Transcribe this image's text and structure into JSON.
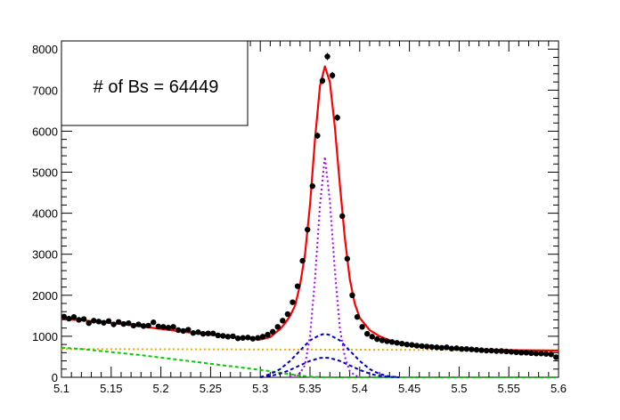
{
  "chart_data": {
    "type": "scatter",
    "title": "",
    "xlabel": "",
    "ylabel": "",
    "xlim": [
      5.1,
      5.6
    ],
    "ylim": [
      0,
      8200
    ],
    "grid": false,
    "legend_placement": "top-left",
    "annotation": "# of Bs = 64449",
    "x_ticks": [
      "5.1",
      "5.15",
      "5.2",
      "5.25",
      "5.3",
      "5.35",
      "5.4",
      "5.45",
      "5.5",
      "5.55",
      "5.6"
    ],
    "x_tick_values": [
      5.1,
      5.15,
      5.2,
      5.25,
      5.3,
      5.35,
      5.4,
      5.45,
      5.5,
      5.55,
      5.6
    ],
    "y_ticks": [
      "0",
      "1000",
      "2000",
      "3000",
      "4000",
      "5000",
      "6000",
      "7000",
      "8000"
    ],
    "y_tick_values": [
      0,
      1000,
      2000,
      3000,
      4000,
      5000,
      6000,
      7000,
      8000
    ],
    "colors": {
      "data": "#000000",
      "total_fit": "#ff0000",
      "signal_narrow": "#aa00ff",
      "signal_wide": "#0000cc",
      "partial_reco": "#00cc00",
      "combinatorial": "#ffaa00"
    },
    "series": [
      {
        "key": "data",
        "style": "points",
        "x": [
          5.1025,
          5.1075,
          5.1125,
          5.1175,
          5.1225,
          5.1275,
          5.1325,
          5.1375,
          5.1425,
          5.1475,
          5.1525,
          5.1575,
          5.1625,
          5.1675,
          5.1725,
          5.1775,
          5.1825,
          5.1875,
          5.1925,
          5.1975,
          5.2025,
          5.2075,
          5.2125,
          5.2175,
          5.2225,
          5.2275,
          5.2325,
          5.2375,
          5.2425,
          5.2475,
          5.2525,
          5.2575,
          5.2625,
          5.2675,
          5.2725,
          5.2775,
          5.2825,
          5.2875,
          5.2925,
          5.2975,
          5.3025,
          5.3075,
          5.3125,
          5.3175,
          5.3225,
          5.3275,
          5.3325,
          5.3375,
          5.3425,
          5.3475,
          5.3525,
          5.3575,
          5.3625,
          5.3675,
          5.3725,
          5.3775,
          5.3825,
          5.3875,
          5.3925,
          5.3975,
          5.4025,
          5.4075,
          5.4125,
          5.4175,
          5.4225,
          5.4275,
          5.4325,
          5.4375,
          5.4425,
          5.4475,
          5.4525,
          5.4575,
          5.4625,
          5.4675,
          5.4725,
          5.4775,
          5.4825,
          5.4875,
          5.4925,
          5.4975,
          5.5025,
          5.5075,
          5.5125,
          5.5175,
          5.5225,
          5.5275,
          5.5325,
          5.5375,
          5.5425,
          5.5475,
          5.5525,
          5.5575,
          5.5625,
          5.5675,
          5.5725,
          5.5775,
          5.5825,
          5.5875,
          5.5925,
          5.5975
        ],
        "y": [
          1480,
          1430,
          1470,
          1400,
          1420,
          1320,
          1380,
          1360,
          1330,
          1370,
          1290,
          1350,
          1300,
          1320,
          1260,
          1290,
          1250,
          1260,
          1340,
          1240,
          1230,
          1210,
          1230,
          1150,
          1130,
          1160,
          1080,
          1100,
          1060,
          1070,
          1070,
          1020,
          1010,
          990,
          1000,
          950,
          960,
          970,
          940,
          960,
          990,
          1040,
          1110,
          1230,
          1380,
          1540,
          1830,
          2220,
          2840,
          3600,
          4660,
          5890,
          7230,
          7820,
          7360,
          6330,
          3930,
          2890,
          2000,
          1470,
          1230,
          1060,
          990,
          930,
          900,
          880,
          860,
          840,
          820,
          800,
          790,
          770,
          760,
          750,
          740,
          730,
          720,
          730,
          700,
          710,
          690,
          690,
          680,
          670,
          660,
          650,
          650,
          640,
          640,
          630,
          620,
          610,
          600,
          600,
          590,
          580,
          580,
          570,
          560,
          490
        ],
        "errors": [
          38,
          38,
          38,
          37,
          38,
          36,
          37,
          37,
          36,
          37,
          36,
          37,
          36,
          36,
          35,
          36,
          35,
          35,
          37,
          35,
          35,
          35,
          35,
          34,
          34,
          34,
          33,
          33,
          33,
          33,
          33,
          32,
          32,
          31,
          32,
          31,
          31,
          31,
          31,
          31,
          31,
          32,
          33,
          35,
          37,
          39,
          43,
          47,
          53,
          60,
          68,
          77,
          85,
          88,
          86,
          80,
          63,
          54,
          45,
          38,
          35,
          33,
          31,
          30,
          30,
          30,
          29,
          29,
          29,
          28,
          28,
          28,
          28,
          27,
          27,
          27,
          27,
          27,
          26,
          27,
          26,
          26,
          26,
          26,
          26,
          26,
          26,
          25,
          25,
          25,
          25,
          25,
          24,
          24,
          24,
          24,
          24,
          24,
          24,
          22
        ]
      },
      {
        "key": "total_fit",
        "style": "solid",
        "x": [
          5.1,
          5.12,
          5.14,
          5.16,
          5.18,
          5.2,
          5.22,
          5.24,
          5.26,
          5.28,
          5.3,
          5.31,
          5.32,
          5.325,
          5.33,
          5.335,
          5.34,
          5.345,
          5.35,
          5.355,
          5.36,
          5.365,
          5.37,
          5.375,
          5.38,
          5.385,
          5.39,
          5.395,
          5.4,
          5.41,
          5.42,
          5.43,
          5.44,
          5.45,
          5.47,
          5.5,
          5.53,
          5.56,
          5.6
        ],
        "y": [
          1420,
          1390,
          1350,
          1300,
          1240,
          1180,
          1120,
          1060,
          1010,
          960,
          920,
          980,
          1180,
          1320,
          1500,
          1750,
          2250,
          3000,
          4200,
          5800,
          7100,
          7580,
          7200,
          6100,
          4700,
          3400,
          2400,
          1800,
          1450,
          1150,
          1000,
          900,
          840,
          800,
          740,
          690,
          670,
          660,
          650
        ]
      },
      {
        "key": "signal_narrow",
        "style": "dotted",
        "x": [
          5.33,
          5.34,
          5.345,
          5.35,
          5.355,
          5.36,
          5.365,
          5.37,
          5.375,
          5.38,
          5.385,
          5.39,
          5.395,
          5.4
        ],
        "y": [
          0,
          100,
          300,
          1000,
          2400,
          4200,
          5380,
          4300,
          2600,
          1200,
          500,
          150,
          50,
          0
        ]
      },
      {
        "key": "signal_wide",
        "style": "dashed",
        "x": [
          5.3,
          5.31,
          5.32,
          5.33,
          5.34,
          5.35,
          5.36,
          5.365,
          5.37,
          5.38,
          5.39,
          5.4,
          5.41,
          5.42,
          5.43,
          5.44
        ],
        "y": [
          0,
          80,
          200,
          400,
          650,
          900,
          1030,
          1060,
          1030,
          900,
          650,
          400,
          200,
          80,
          20,
          0
        ]
      },
      {
        "key": "signal_wide_2",
        "style": "dashed",
        "x": [
          5.3,
          5.31,
          5.32,
          5.33,
          5.34,
          5.35,
          5.36,
          5.365,
          5.37,
          5.38,
          5.39,
          5.4,
          5.41,
          5.42,
          5.43,
          5.44
        ],
        "y": [
          0,
          30,
          90,
          180,
          290,
          400,
          470,
          480,
          470,
          400,
          290,
          180,
          90,
          30,
          10,
          0
        ]
      },
      {
        "key": "partial_reco",
        "style": "dashed",
        "x": [
          5.1,
          5.12,
          5.14,
          5.16,
          5.18,
          5.2,
          5.22,
          5.24,
          5.26,
          5.28,
          5.3,
          5.31,
          5.32,
          5.33,
          5.34,
          5.35,
          5.36,
          5.38,
          5.4,
          5.45,
          5.5,
          5.55,
          5.6
        ],
        "y": [
          720,
          690,
          640,
          590,
          540,
          480,
          420,
          360,
          300,
          240,
          180,
          150,
          110,
          75,
          40,
          15,
          5,
          0,
          0,
          0,
          0,
          0,
          0
        ]
      },
      {
        "key": "combinatorial",
        "style": "dotted",
        "x": [
          5.1,
          5.6
        ],
        "y": [
          690,
          660
        ]
      }
    ]
  }
}
